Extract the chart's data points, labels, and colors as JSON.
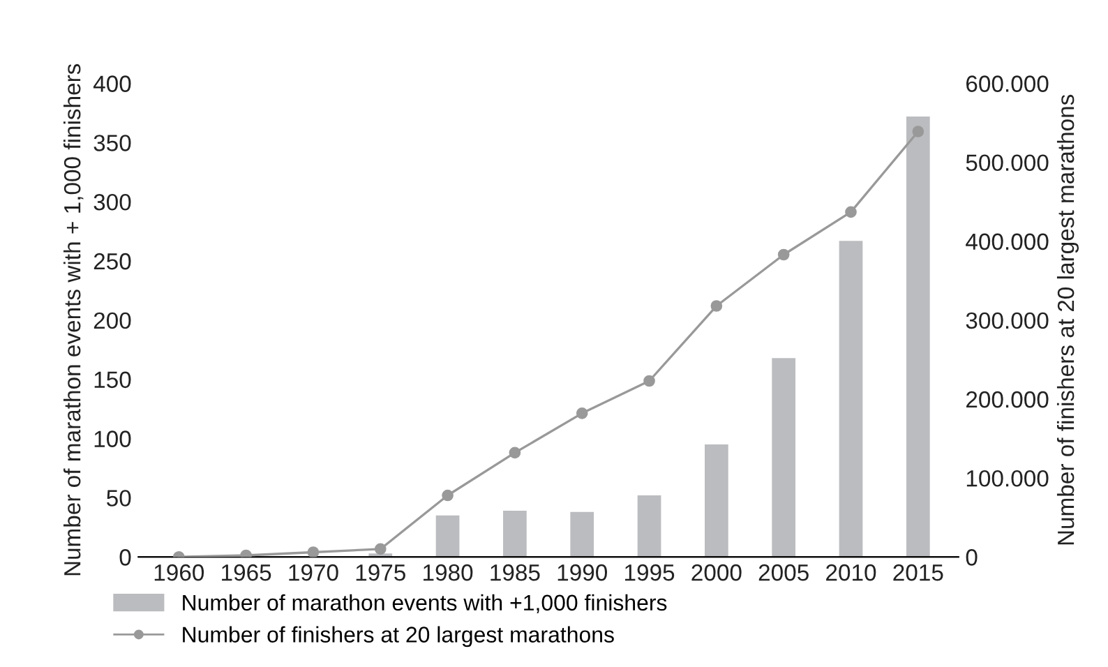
{
  "chart_data": {
    "type": "bar",
    "ylabel": "Number of marathon events with + 1,000 finishers",
    "y2label": "Number of finishers at 20 largest marathons",
    "categories": [
      "1960",
      "1965",
      "1970",
      "1975",
      "1980",
      "1985",
      "1990",
      "1995",
      "2000",
      "2005",
      "2010",
      "2015"
    ],
    "series": [
      {
        "name": "Number of marathon events with +1,000 finishers",
        "color": "#bbbcbf",
        "values": [
          0,
          0,
          null,
          3,
          35,
          39,
          38,
          52,
          95,
          168,
          267,
          372
        ]
      },
      {
        "name": "Number of finishers at 20 largest marathons",
        "type": "line",
        "axis": "y2",
        "color": "#999999",
        "marker": "circle",
        "values": [
          0,
          2000,
          6000,
          10000,
          78000,
          132000,
          182000,
          223000,
          318000,
          383000,
          437000,
          539000
        ]
      }
    ],
    "ylim": [
      0,
      400
    ],
    "yticks": [
      0,
      50,
      100,
      150,
      200,
      250,
      300,
      350,
      400
    ],
    "y2lim": [
      0,
      600000
    ],
    "y2ticks": [
      0,
      {
        "value": 100000,
        "label": "100.000"
      },
      {
        "value": 200000,
        "label": "200.000"
      },
      {
        "value": 300000,
        "label": "300.000"
      },
      {
        "value": 400000,
        "label": "400.000"
      },
      {
        "value": 500000,
        "label": "500.000"
      },
      {
        "value": 600000,
        "label": "600.000"
      }
    ],
    "grid": false,
    "legend": "bottom"
  }
}
